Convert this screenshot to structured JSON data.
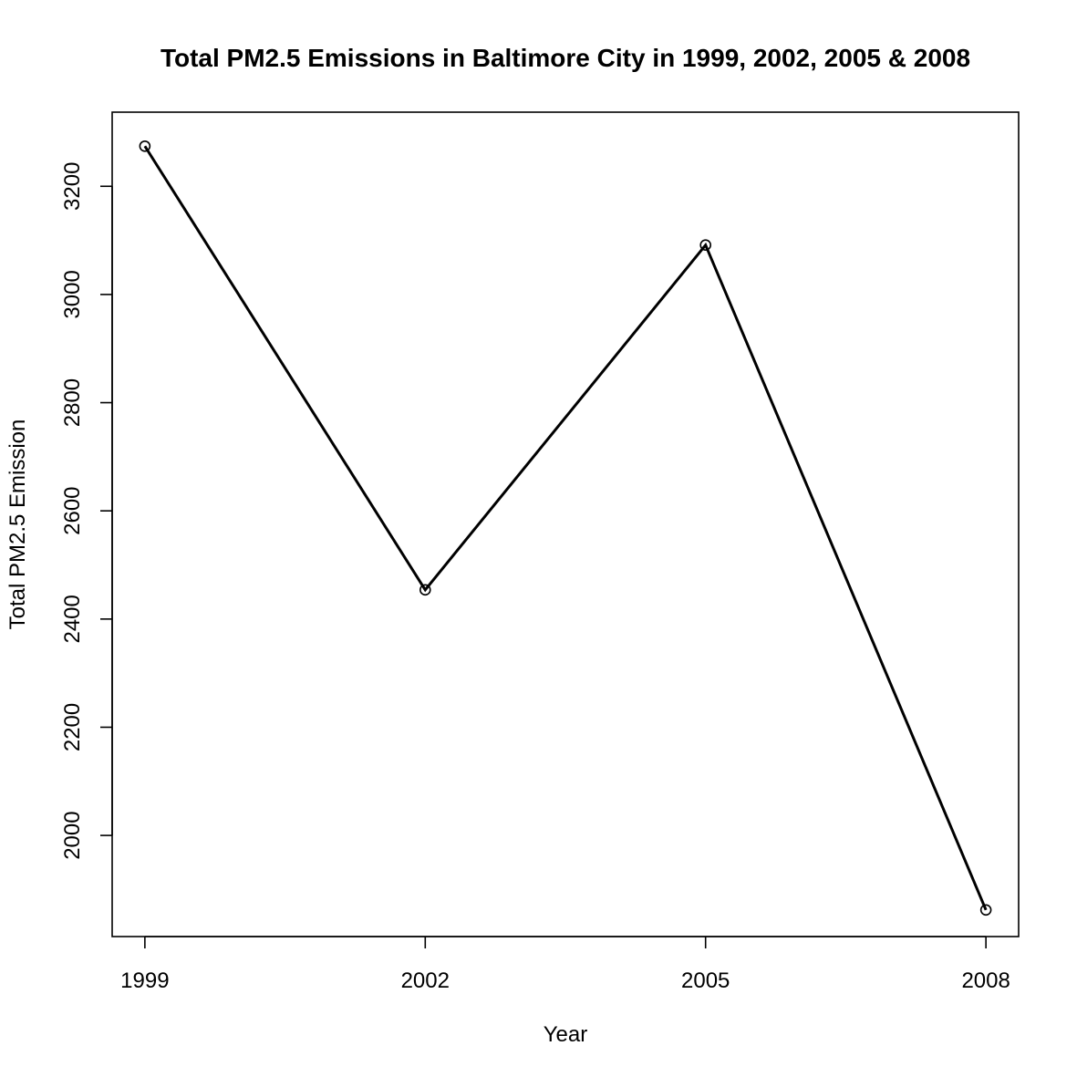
{
  "chart_data": {
    "type": "line",
    "title": "Total PM2.5 Emissions in Baltimore City in 1999, 2002, 2005 & 2008",
    "xlabel": "Year",
    "ylabel": "Total PM2.5 Emission",
    "x": [
      1999,
      2002,
      2005,
      2008
    ],
    "series": [
      {
        "values": [
          3274.18,
          2453.92,
          3091.35,
          1862.28
        ]
      }
    ],
    "xlim": [
      1998.65,
      2008.35
    ],
    "ylim": [
      1813.05,
      3337.0
    ],
    "xticks": [
      "1999",
      "2002",
      "2005",
      "2008"
    ],
    "yticks": [
      "2000",
      "2200",
      "2400",
      "2600",
      "2800",
      "3000",
      "3200"
    ],
    "markers": "open-circle",
    "line_color": "#000000",
    "grid": false,
    "legend": "none"
  }
}
